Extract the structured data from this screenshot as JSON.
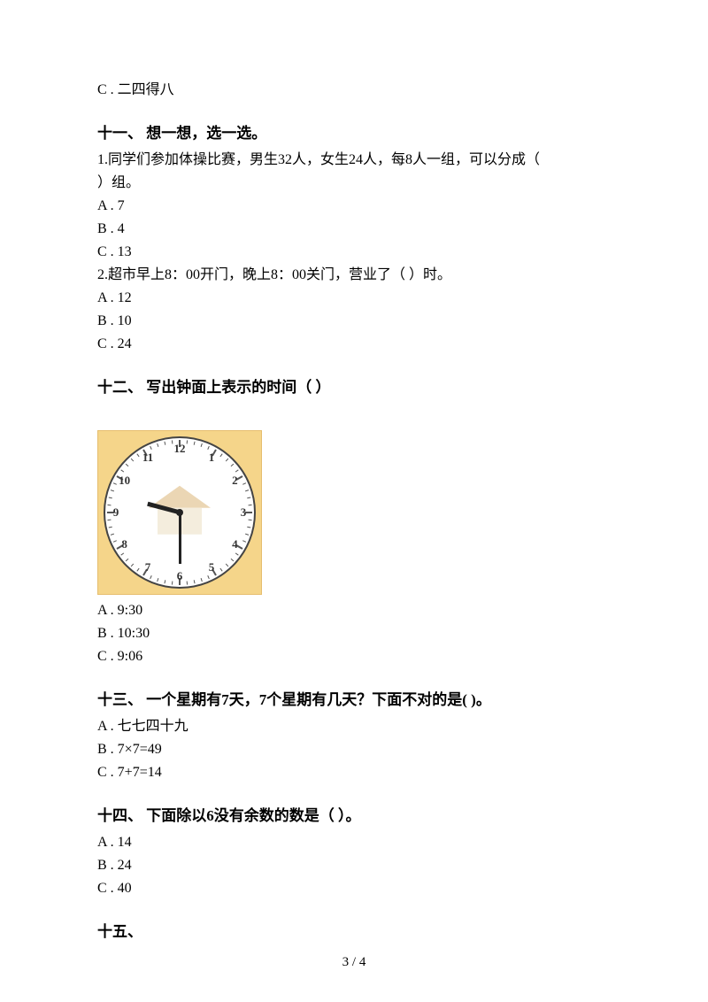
{
  "orphan_option": "C . 二四得八",
  "sections": {
    "s11": {
      "title": "十一、 想一想，选一选。",
      "q1": {
        "stem_line1": "1.同学们参加体操比赛，男生32人，女生24人，每8人一组，可以分成（",
        "stem_line2": "）组。",
        "a": "A . 7",
        "b": "B . 4",
        "c": "C . 13"
      },
      "q2": {
        "stem": "2.超市早上8：00开门，晚上8：00关门，营业了（  ）时。",
        "a": "A . 12",
        "b": "B . 10",
        "c": "C . 24"
      }
    },
    "s12": {
      "title": "十二、 写出钟面上表示的时间（ ）",
      "clock": {
        "type": "clock",
        "numbers": [
          "12",
          "1",
          "2",
          "3",
          "4",
          "5",
          "6",
          "7",
          "8",
          "9",
          "10",
          "11"
        ],
        "hour_angle_deg": -75,
        "minute_angle_deg": 180,
        "frame_bg": "#f5d58a",
        "frame_border": "#e6be6e",
        "face_bg": "#ffffff",
        "face_border": "#444444",
        "hand_color": "#222222",
        "num_color": "#333333"
      },
      "a": "A . 9:30",
      "b": "B . 10:30",
      "c": "C . 9:06"
    },
    "s13": {
      "title": "十三、 一个星期有7天，7个星期有几天？下面不对的是(   )。",
      "a": "A . 七七四十九",
      "b": "B . 7×7=49",
      "c": "C . 7+7=14"
    },
    "s14": {
      "title": "十四、 下面除以6没有余数的数是（  ）。",
      "a": "A . 14",
      "b": "B . 24",
      "c": "C . 40"
    },
    "s15": {
      "title": "十五、"
    }
  },
  "footer": "3 / 4"
}
